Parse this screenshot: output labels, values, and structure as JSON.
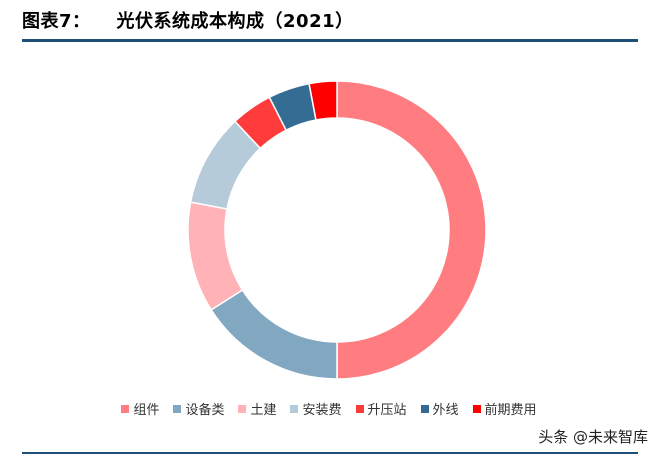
{
  "figure": {
    "label": "图表7：",
    "title": "光伏系统成本构成（2021）"
  },
  "chart_data": {
    "type": "pie",
    "donut": true,
    "categories": [
      "组件",
      "设备类",
      "土建",
      "安装费",
      "升压站",
      "外线",
      "前期费用"
    ],
    "values": [
      50,
      16,
      12,
      10,
      4.5,
      4.5,
      3
    ],
    "colors": [
      "#ff7c80",
      "#82a7c0",
      "#ffb3b6",
      "#b6cbd9",
      "#ff3b3b",
      "#346c93",
      "#ff0000"
    ],
    "legend_position": "bottom"
  },
  "watermark": "头条 @未来智库"
}
